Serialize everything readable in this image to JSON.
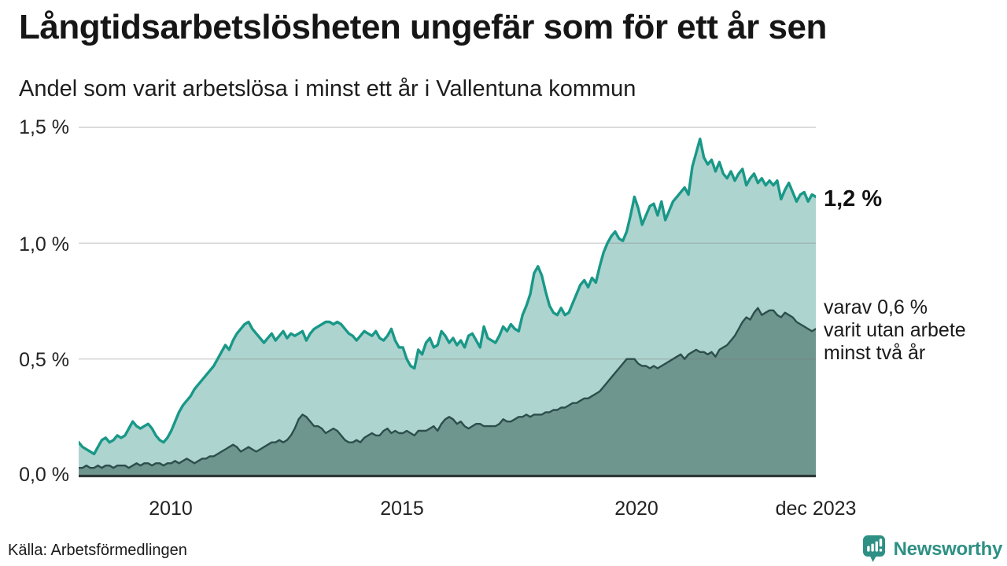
{
  "header": {
    "title": "Långtidsarbetslösheten ungefär som för ett år sen",
    "subtitle": "Andel som varit arbetslösa i minst ett år i Vallentuna kommun"
  },
  "chart_data": {
    "type": "area",
    "title": "Långtidsarbetslösheten ungefär som för ett år sen",
    "subtitle": "Andel som varit arbetslösa i minst ett år i Vallentuna kommun",
    "x_start_year": 2008,
    "x_end_label": "dec 2023",
    "x_tick_labels": [
      "2010",
      "2015",
      "2020",
      "dec 2023"
    ],
    "y_tick_labels": [
      "1,5 %",
      "1,0 %",
      "0,5 %",
      "0,0 %"
    ],
    "y_grid": [
      0.5,
      1.0,
      1.5
    ],
    "ylim": [
      0,
      1.5
    ],
    "grid": true,
    "legend_position": "right-annotations",
    "unit": "%",
    "series": [
      {
        "name": "Andel arbetslösa minst ett år",
        "color": "#199888",
        "fill": "#AED4CF",
        "latest_value": 1.2,
        "values": [
          0.14,
          0.12,
          0.11,
          0.1,
          0.09,
          0.12,
          0.15,
          0.16,
          0.14,
          0.15,
          0.17,
          0.16,
          0.17,
          0.2,
          0.23,
          0.21,
          0.2,
          0.21,
          0.22,
          0.2,
          0.17,
          0.15,
          0.14,
          0.16,
          0.19,
          0.23,
          0.27,
          0.3,
          0.32,
          0.34,
          0.37,
          0.39,
          0.41,
          0.43,
          0.45,
          0.47,
          0.5,
          0.53,
          0.56,
          0.54,
          0.58,
          0.61,
          0.63,
          0.65,
          0.66,
          0.63,
          0.61,
          0.59,
          0.57,
          0.59,
          0.61,
          0.58,
          0.6,
          0.62,
          0.59,
          0.61,
          0.6,
          0.61,
          0.62,
          0.58,
          0.61,
          0.63,
          0.64,
          0.65,
          0.66,
          0.66,
          0.65,
          0.66,
          0.65,
          0.63,
          0.61,
          0.6,
          0.58,
          0.6,
          0.62,
          0.61,
          0.6,
          0.62,
          0.59,
          0.58,
          0.6,
          0.63,
          0.58,
          0.55,
          0.55,
          0.5,
          0.47,
          0.46,
          0.54,
          0.52,
          0.57,
          0.59,
          0.55,
          0.56,
          0.62,
          0.6,
          0.57,
          0.59,
          0.56,
          0.58,
          0.55,
          0.6,
          0.61,
          0.58,
          0.55,
          0.64,
          0.59,
          0.58,
          0.57,
          0.6,
          0.64,
          0.62,
          0.65,
          0.63,
          0.62,
          0.69,
          0.73,
          0.78,
          0.87,
          0.9,
          0.86,
          0.79,
          0.73,
          0.7,
          0.69,
          0.72,
          0.69,
          0.7,
          0.74,
          0.78,
          0.82,
          0.84,
          0.81,
          0.85,
          0.83,
          0.9,
          0.96,
          1.0,
          1.03,
          1.05,
          1.02,
          1.01,
          1.05,
          1.12,
          1.2,
          1.15,
          1.08,
          1.12,
          1.16,
          1.17,
          1.12,
          1.18,
          1.1,
          1.14,
          1.18,
          1.2,
          1.22,
          1.24,
          1.21,
          1.33,
          1.39,
          1.45,
          1.37,
          1.34,
          1.36,
          1.31,
          1.35,
          1.3,
          1.28,
          1.31,
          1.27,
          1.3,
          1.32,
          1.25,
          1.28,
          1.3,
          1.26,
          1.28,
          1.25,
          1.27,
          1.25,
          1.27,
          1.19,
          1.23,
          1.26,
          1.22,
          1.18,
          1.21,
          1.22,
          1.18,
          1.21,
          1.2
        ]
      },
      {
        "name": "varav utan arbete minst två år",
        "color": "#2D4F4C",
        "fill": "#6F958F",
        "latest_value": 0.6,
        "values": [
          0.03,
          0.03,
          0.04,
          0.03,
          0.03,
          0.04,
          0.03,
          0.04,
          0.04,
          0.03,
          0.04,
          0.04,
          0.04,
          0.03,
          0.04,
          0.05,
          0.04,
          0.05,
          0.05,
          0.04,
          0.05,
          0.05,
          0.04,
          0.05,
          0.05,
          0.06,
          0.05,
          0.06,
          0.07,
          0.06,
          0.05,
          0.06,
          0.07,
          0.07,
          0.08,
          0.08,
          0.09,
          0.1,
          0.11,
          0.12,
          0.13,
          0.12,
          0.1,
          0.11,
          0.12,
          0.11,
          0.1,
          0.11,
          0.12,
          0.13,
          0.14,
          0.14,
          0.15,
          0.14,
          0.15,
          0.17,
          0.2,
          0.24,
          0.26,
          0.25,
          0.23,
          0.21,
          0.21,
          0.2,
          0.18,
          0.19,
          0.2,
          0.19,
          0.17,
          0.15,
          0.14,
          0.14,
          0.15,
          0.14,
          0.16,
          0.17,
          0.18,
          0.17,
          0.17,
          0.19,
          0.2,
          0.18,
          0.19,
          0.18,
          0.18,
          0.19,
          0.18,
          0.17,
          0.19,
          0.19,
          0.19,
          0.2,
          0.21,
          0.19,
          0.22,
          0.24,
          0.25,
          0.24,
          0.22,
          0.23,
          0.21,
          0.2,
          0.21,
          0.22,
          0.22,
          0.21,
          0.21,
          0.21,
          0.21,
          0.22,
          0.24,
          0.23,
          0.23,
          0.24,
          0.25,
          0.25,
          0.26,
          0.25,
          0.26,
          0.26,
          0.26,
          0.27,
          0.27,
          0.28,
          0.28,
          0.29,
          0.29,
          0.3,
          0.31,
          0.31,
          0.32,
          0.33,
          0.33,
          0.34,
          0.35,
          0.36,
          0.38,
          0.4,
          0.42,
          0.44,
          0.46,
          0.48,
          0.5,
          0.5,
          0.5,
          0.48,
          0.47,
          0.47,
          0.46,
          0.47,
          0.46,
          0.47,
          0.48,
          0.49,
          0.5,
          0.51,
          0.52,
          0.5,
          0.52,
          0.53,
          0.54,
          0.53,
          0.53,
          0.52,
          0.53,
          0.51,
          0.54,
          0.55,
          0.56,
          0.58,
          0.6,
          0.63,
          0.66,
          0.68,
          0.67,
          0.7,
          0.72,
          0.69,
          0.7,
          0.71,
          0.71,
          0.69,
          0.68,
          0.7,
          0.69,
          0.68,
          0.66,
          0.65,
          0.64,
          0.63,
          0.62,
          0.63
        ]
      }
    ],
    "annotations": {
      "latest_total": "1,2 %",
      "latest_two_years_lines": [
        "varav 0,6 %",
        "varit utan arbete",
        "minst två år"
      ]
    }
  },
  "footer": {
    "source": "Källa: Arbetsförmedlingen",
    "logo_text": "Newsworthy"
  },
  "colors": {
    "accent_teal": "#199888",
    "light_fill": "#AED4CF",
    "dark_line": "#2D4F4C",
    "dark_fill": "#6F958F",
    "axis_line": "#2e3837",
    "brand_teal": "#2E9084"
  }
}
